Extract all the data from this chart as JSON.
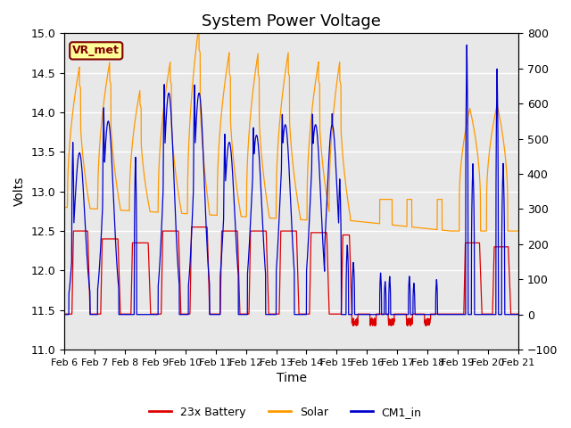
{
  "title": "System Power Voltage",
  "xlabel": "Time",
  "ylabel": "Volts",
  "ylim_left": [
    11.0,
    15.0
  ],
  "ylim_right": [
    -100,
    800
  ],
  "yticks_left": [
    11.0,
    11.5,
    12.0,
    12.5,
    13.0,
    13.5,
    14.0,
    14.5,
    15.0
  ],
  "yticks_right": [
    -100,
    0,
    100,
    200,
    300,
    400,
    500,
    600,
    700,
    800
  ],
  "xtick_labels": [
    "Feb 6",
    "Feb 7",
    "Feb 8",
    "Feb 9",
    "Feb 10",
    "Feb 11",
    "Feb 12",
    "Feb 13",
    "Feb 14",
    "Feb 15",
    "Feb 16",
    "Feb 17",
    "Feb 18",
    "Feb 19",
    "Feb 20",
    "Feb 21"
  ],
  "colors": {
    "battery": "#dd0000",
    "solar": "#ff9900",
    "cm1": "#0000cc",
    "shading": "#e8e8e8",
    "vr_box_bg": "#ffff99",
    "vr_box_border": "#800000"
  },
  "legend_labels": [
    "23x Battery",
    "Solar",
    "CM1_in"
  ],
  "vr_label": "VR_met",
  "title_fontsize": 13,
  "axis_fontsize": 10,
  "tick_fontsize": 9
}
